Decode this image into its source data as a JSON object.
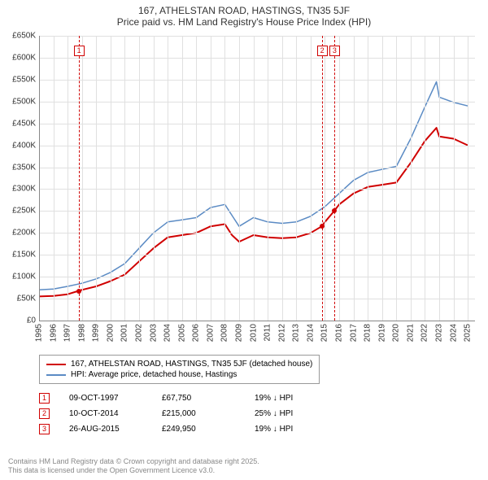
{
  "title": "167, ATHELSTAN ROAD, HASTINGS, TN35 5JF",
  "subtitle": "Price paid vs. HM Land Registry's House Price Index (HPI)",
  "chart": {
    "type": "line",
    "background_color": "#ffffff",
    "grid_color": "#e0e0e0",
    "axis_color": "#888888",
    "tick_font_size": 10,
    "title_font_size": 12,
    "x_years": [
      1995,
      1996,
      1997,
      1998,
      1999,
      2000,
      2001,
      2002,
      2003,
      2004,
      2005,
      2006,
      2007,
      2008,
      2009,
      2010,
      2011,
      2012,
      2013,
      2014,
      2015,
      2016,
      2017,
      2018,
      2019,
      2020,
      2021,
      2022,
      2023,
      2024,
      2025
    ],
    "xlim": [
      1995,
      2025.5
    ],
    "ylim": [
      0,
      650000
    ],
    "ytick_step": 50000,
    "ytick_labels": [
      "£0",
      "£50K",
      "£100K",
      "£150K",
      "£200K",
      "£250K",
      "£300K",
      "£350K",
      "£400K",
      "£450K",
      "£500K",
      "£550K",
      "£600K",
      "£650K"
    ],
    "series": [
      {
        "name": "167, ATHELSTAN ROAD, HASTINGS, TN35 5JF (detached house)",
        "color": "#d00000",
        "line_width": 2,
        "points": [
          [
            1995,
            55000
          ],
          [
            1996,
            56000
          ],
          [
            1997,
            60000
          ],
          [
            1997.77,
            67750
          ],
          [
            1998,
            70000
          ],
          [
            1999,
            78000
          ],
          [
            2000,
            90000
          ],
          [
            2001,
            105000
          ],
          [
            2002,
            135000
          ],
          [
            2003,
            165000
          ],
          [
            2004,
            190000
          ],
          [
            2005,
            195000
          ],
          [
            2006,
            200000
          ],
          [
            2007,
            215000
          ],
          [
            2008,
            220000
          ],
          [
            2008.5,
            195000
          ],
          [
            2009,
            180000
          ],
          [
            2010,
            195000
          ],
          [
            2011,
            190000
          ],
          [
            2012,
            188000
          ],
          [
            2013,
            190000
          ],
          [
            2014,
            200000
          ],
          [
            2014.78,
            215000
          ],
          [
            2015,
            225000
          ],
          [
            2015.65,
            249950
          ],
          [
            2016,
            265000
          ],
          [
            2017,
            290000
          ],
          [
            2018,
            305000
          ],
          [
            2019,
            310000
          ],
          [
            2020,
            315000
          ],
          [
            2021,
            360000
          ],
          [
            2022,
            410000
          ],
          [
            2022.8,
            440000
          ],
          [
            2023,
            420000
          ],
          [
            2024,
            415000
          ],
          [
            2025,
            400000
          ]
        ]
      },
      {
        "name": "HPI: Average price, detached house, Hastings",
        "color": "#5b8bc4",
        "line_width": 1.5,
        "points": [
          [
            1995,
            70000
          ],
          [
            1996,
            72000
          ],
          [
            1997,
            78000
          ],
          [
            1998,
            85000
          ],
          [
            1999,
            95000
          ],
          [
            2000,
            110000
          ],
          [
            2001,
            130000
          ],
          [
            2002,
            165000
          ],
          [
            2003,
            200000
          ],
          [
            2004,
            225000
          ],
          [
            2005,
            230000
          ],
          [
            2006,
            235000
          ],
          [
            2007,
            258000
          ],
          [
            2008,
            265000
          ],
          [
            2008.6,
            235000
          ],
          [
            2009,
            215000
          ],
          [
            2010,
            235000
          ],
          [
            2011,
            225000
          ],
          [
            2012,
            222000
          ],
          [
            2013,
            225000
          ],
          [
            2014,
            238000
          ],
          [
            2015,
            260000
          ],
          [
            2016,
            290000
          ],
          [
            2017,
            320000
          ],
          [
            2018,
            338000
          ],
          [
            2019,
            345000
          ],
          [
            2020,
            352000
          ],
          [
            2021,
            415000
          ],
          [
            2022,
            488000
          ],
          [
            2022.8,
            545000
          ],
          [
            2023,
            510000
          ],
          [
            2024,
            498000
          ],
          [
            2025,
            490000
          ]
        ]
      }
    ],
    "markers": [
      {
        "label": "1",
        "x": 1997.77,
        "y": 67750
      },
      {
        "label": "2",
        "x": 2014.78,
        "y": 215000
      },
      {
        "label": "3",
        "x": 2015.65,
        "y": 249950
      }
    ],
    "marker_box_top_offset": 12,
    "marker_line_color": "#d00000"
  },
  "legend": {
    "items": [
      {
        "color": "#d00000",
        "text": "167, ATHELSTAN ROAD, HASTINGS, TN35 5JF (detached house)"
      },
      {
        "color": "#5b8bc4",
        "text": "HPI: Average price, detached house, Hastings"
      }
    ]
  },
  "sales": [
    {
      "label": "1",
      "date": "09-OCT-1997",
      "price": "£67,750",
      "diff": "19% ↓ HPI"
    },
    {
      "label": "2",
      "date": "10-OCT-2014",
      "price": "£215,000",
      "diff": "25% ↓ HPI"
    },
    {
      "label": "3",
      "date": "26-AUG-2015",
      "price": "£249,950",
      "diff": "19% ↓ HPI"
    }
  ],
  "attribution": {
    "line1": "Contains HM Land Registry data © Crown copyright and database right 2025.",
    "line2": "This data is licensed under the Open Government Licence v3.0."
  }
}
